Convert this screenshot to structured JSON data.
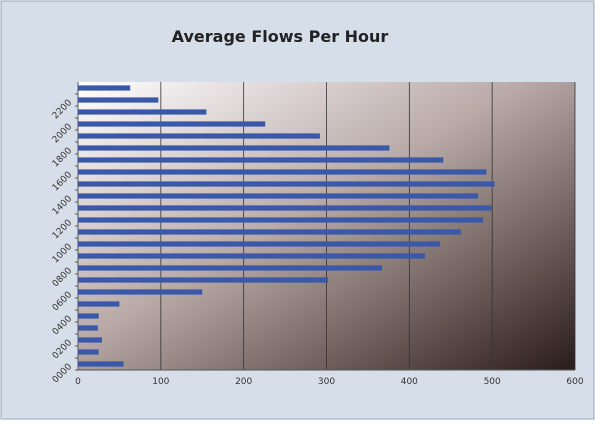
{
  "chart_data": {
    "type": "bar",
    "orientation": "horizontal",
    "title": "Average Flows Per Hour",
    "categories": [
      "0000",
      null,
      "0200",
      null,
      "0400",
      null,
      "0600",
      null,
      "0800",
      null,
      "1000",
      null,
      "1200",
      null,
      "1400",
      null,
      "1600",
      null,
      "1800",
      null,
      "2000",
      null,
      "2200",
      null
    ],
    "values": [
      55,
      25,
      29,
      24,
      25,
      50,
      150,
      302,
      367,
      419,
      437,
      462,
      489,
      499,
      483,
      503,
      493,
      441,
      376,
      292,
      226,
      155,
      97,
      63
    ],
    "color": "#3a58a8",
    "xlim": [
      0,
      600
    ],
    "xticks": [
      0,
      100,
      200,
      300,
      400,
      500,
      600
    ],
    "grid": true
  }
}
